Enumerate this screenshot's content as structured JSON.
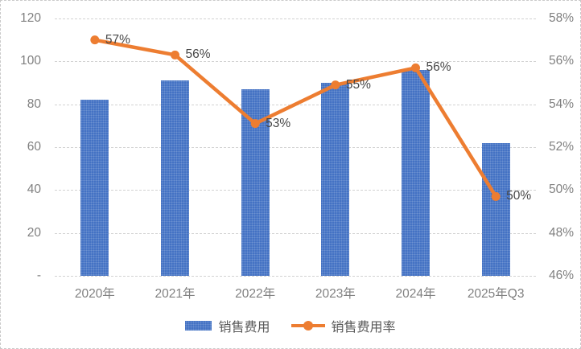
{
  "chart_data": {
    "type": "combo_bar_line",
    "title": "",
    "categories": [
      "2020年",
      "2021年",
      "2022年",
      "2023年",
      "2024年",
      "2025年Q3"
    ],
    "series": [
      {
        "name": "销售费用",
        "type": "bar",
        "axis": "left",
        "values": [
          82,
          91,
          87,
          90,
          96,
          62
        ],
        "color": "#4472C4"
      },
      {
        "name": "销售费用率",
        "type": "line",
        "axis": "right",
        "values": [
          57.0,
          56.3,
          53.1,
          54.9,
          55.7,
          49.7
        ],
        "point_labels": [
          "57%",
          "56%",
          "53%",
          "55%",
          "56%",
          "50%"
        ],
        "color": "#ED7D31"
      }
    ],
    "left_axis": {
      "min": 0,
      "max": 120,
      "tick_labels": [
        "120",
        "100",
        "80",
        "60",
        "40",
        "20",
        "-"
      ]
    },
    "right_axis": {
      "min": 46,
      "max": 58,
      "tick_labels": [
        "58%",
        "56%",
        "54%",
        "52%",
        "50%",
        "48%",
        "46%"
      ]
    },
    "grid": "horizontal-dashed",
    "legend_position": "bottom",
    "legend": [
      {
        "label": "销售费用",
        "swatch": "bar",
        "color": "#4472C4"
      },
      {
        "label": "销售费用率",
        "swatch": "line-marker",
        "color": "#ED7D31"
      }
    ]
  },
  "colors": {
    "bar": "#4472C4",
    "line": "#ED7D31",
    "axis_text": "#808080",
    "data_label_text": "#474747",
    "gridline": "#D2D2D2",
    "background": "#FFFFFF",
    "border": "#C9C9C9"
  }
}
